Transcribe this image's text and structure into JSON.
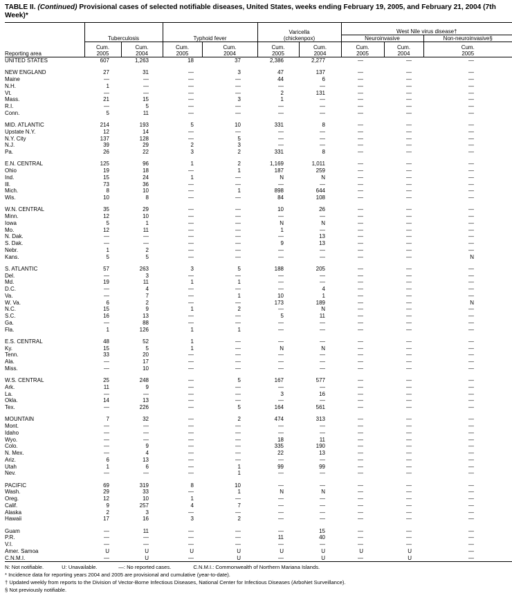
{
  "title": {
    "prefix": "TABLE II. ",
    "continued": "(Continued)",
    "text": " Provisional cases of selected notifiable diseases, United States, weeks ending February 19, 2005, and February 21, 2004 (7th Week)*"
  },
  "header": {
    "reporting_area": "Reporting area",
    "tuberculosis": "Tuberculosis",
    "typhoid": "Typhoid fever",
    "varicella_line1": "Varicella",
    "varicella_line2": "(chickenpox)",
    "west_nile": "West Nile virus disease†",
    "neuroinvasive": "Neuroinvasive",
    "non_neuroinvasive": "Non-neuroinvasive§",
    "cum": "Cum.",
    "years": [
      "2005",
      "2004",
      "2005",
      "2004",
      "2005",
      "2004",
      "2005",
      "2004",
      "2005"
    ]
  },
  "groups": [
    [
      [
        "UNITED STATES",
        "607",
        "1,263",
        "18",
        "37",
        "2,386",
        "2,277",
        "—",
        "—",
        "—"
      ]
    ],
    [
      [
        "NEW ENGLAND",
        "27",
        "31",
        "—",
        "3",
        "47",
        "137",
        "—",
        "—",
        "—"
      ],
      [
        "Maine",
        "—",
        "—",
        "—",
        "—",
        "44",
        "6",
        "—",
        "—",
        "—"
      ],
      [
        "N.H.",
        "1",
        "—",
        "—",
        "—",
        "—",
        "—",
        "—",
        "—",
        "—"
      ],
      [
        "Vt.",
        "—",
        "—",
        "—",
        "—",
        "2",
        "131",
        "—",
        "—",
        "—"
      ],
      [
        "Mass.",
        "21",
        "15",
        "—",
        "3",
        "1",
        "—",
        "—",
        "—",
        "—"
      ],
      [
        "R.I.",
        "—",
        "5",
        "—",
        "—",
        "—",
        "—",
        "—",
        "—",
        "—"
      ],
      [
        "Conn.",
        "5",
        "11",
        "—",
        "—",
        "—",
        "—",
        "—",
        "—",
        "—"
      ]
    ],
    [
      [
        "MID. ATLANTIC",
        "214",
        "193",
        "5",
        "10",
        "331",
        "8",
        "—",
        "—",
        "—"
      ],
      [
        "Upstate N.Y.",
        "12",
        "14",
        "—",
        "—",
        "—",
        "—",
        "—",
        "—",
        "—"
      ],
      [
        "N.Y. City",
        "137",
        "128",
        "—",
        "5",
        "—",
        "—",
        "—",
        "—",
        "—"
      ],
      [
        "N.J.",
        "39",
        "29",
        "2",
        "3",
        "—",
        "—",
        "—",
        "—",
        "—"
      ],
      [
        "Pa.",
        "26",
        "22",
        "3",
        "2",
        "331",
        "8",
        "—",
        "—",
        "—"
      ]
    ],
    [
      [
        "E.N. CENTRAL",
        "125",
        "96",
        "1",
        "2",
        "1,169",
        "1,011",
        "—",
        "—",
        "—"
      ],
      [
        "Ohio",
        "19",
        "18",
        "—",
        "1",
        "187",
        "259",
        "—",
        "—",
        "—"
      ],
      [
        "Ind.",
        "15",
        "24",
        "1",
        "—",
        "N",
        "N",
        "—",
        "—",
        "—"
      ],
      [
        "Ill.",
        "73",
        "36",
        "—",
        "—",
        "—",
        "—",
        "—",
        "—",
        "—"
      ],
      [
        "Mich.",
        "8",
        "10",
        "—",
        "1",
        "898",
        "644",
        "—",
        "—",
        "—"
      ],
      [
        "Wis.",
        "10",
        "8",
        "—",
        "—",
        "84",
        "108",
        "—",
        "—",
        "—"
      ]
    ],
    [
      [
        "W.N. CENTRAL",
        "35",
        "29",
        "—",
        "—",
        "10",
        "26",
        "—",
        "—",
        "—"
      ],
      [
        "Minn.",
        "12",
        "10",
        "—",
        "—",
        "—",
        "—",
        "—",
        "—",
        "—"
      ],
      [
        "Iowa",
        "5",
        "1",
        "—",
        "—",
        "N",
        "N",
        "—",
        "—",
        "—"
      ],
      [
        "Mo.",
        "12",
        "11",
        "—",
        "—",
        "1",
        "—",
        "—",
        "—",
        "—"
      ],
      [
        "N. Dak.",
        "—",
        "—",
        "—",
        "—",
        "—",
        "13",
        "—",
        "—",
        "—"
      ],
      [
        "S. Dak.",
        "—",
        "—",
        "—",
        "—",
        "9",
        "13",
        "—",
        "—",
        "—"
      ],
      [
        "Nebr.",
        "1",
        "2",
        "—",
        "—",
        "—",
        "—",
        "—",
        "—",
        "—"
      ],
      [
        "Kans.",
        "5",
        "5",
        "—",
        "—",
        "—",
        "—",
        "—",
        "—",
        "N"
      ]
    ],
    [
      [
        "S. ATLANTIC",
        "57",
        "263",
        "3",
        "5",
        "188",
        "205",
        "—",
        "—",
        "—"
      ],
      [
        "Del.",
        "—",
        "3",
        "—",
        "—",
        "—",
        "—",
        "—",
        "—",
        "—"
      ],
      [
        "Md.",
        "19",
        "11",
        "1",
        "1",
        "—",
        "—",
        "—",
        "—",
        "—"
      ],
      [
        "D.C.",
        "—",
        "4",
        "—",
        "—",
        "—",
        "4",
        "—",
        "—",
        "—"
      ],
      [
        "Va.",
        "—",
        "7",
        "—",
        "1",
        "10",
        "1",
        "—",
        "—",
        "—"
      ],
      [
        "W. Va.",
        "6",
        "2",
        "—",
        "—",
        "173",
        "189",
        "—",
        "—",
        "N"
      ],
      [
        "N.C.",
        "15",
        "9",
        "1",
        "2",
        "—",
        "N",
        "—",
        "—",
        "—"
      ],
      [
        "S.C.",
        "16",
        "13",
        "—",
        "—",
        "5",
        "11",
        "—",
        "—",
        "—"
      ],
      [
        "Ga.",
        "—",
        "88",
        "—",
        "—",
        "—",
        "—",
        "—",
        "—",
        "—"
      ],
      [
        "Fla.",
        "1",
        "126",
        "1",
        "1",
        "—",
        "—",
        "—",
        "—",
        "—"
      ]
    ],
    [
      [
        "E.S. CENTRAL",
        "48",
        "52",
        "1",
        "—",
        "—",
        "—",
        "—",
        "—",
        "—"
      ],
      [
        "Ky.",
        "15",
        "5",
        "1",
        "—",
        "N",
        "N",
        "—",
        "—",
        "—"
      ],
      [
        "Tenn.",
        "33",
        "20",
        "—",
        "—",
        "—",
        "—",
        "—",
        "—",
        "—"
      ],
      [
        "Ala.",
        "—",
        "17",
        "—",
        "—",
        "—",
        "—",
        "—",
        "—",
        "—"
      ],
      [
        "Miss.",
        "—",
        "10",
        "—",
        "—",
        "—",
        "—",
        "—",
        "—",
        "—"
      ]
    ],
    [
      [
        "W.S. CENTRAL",
        "25",
        "248",
        "—",
        "5",
        "167",
        "577",
        "—",
        "—",
        "—"
      ],
      [
        "Ark.",
        "11",
        "9",
        "—",
        "—",
        "—",
        "—",
        "—",
        "—",
        "—"
      ],
      [
        "La.",
        "—",
        "—",
        "—",
        "—",
        "3",
        "16",
        "—",
        "—",
        "—"
      ],
      [
        "Okla.",
        "14",
        "13",
        "—",
        "—",
        "—",
        "—",
        "—",
        "—",
        "—"
      ],
      [
        "Tex.",
        "—",
        "226",
        "—",
        "5",
        "164",
        "561",
        "—",
        "—",
        "—"
      ]
    ],
    [
      [
        "MOUNTAIN",
        "7",
        "32",
        "—",
        "2",
        "474",
        "313",
        "—",
        "—",
        "—"
      ],
      [
        "Mont.",
        "—",
        "—",
        "—",
        "—",
        "—",
        "—",
        "—",
        "—",
        "—"
      ],
      [
        "Idaho",
        "—",
        "—",
        "—",
        "—",
        "—",
        "—",
        "—",
        "—",
        "—"
      ],
      [
        "Wyo.",
        "—",
        "—",
        "—",
        "—",
        "18",
        "11",
        "—",
        "—",
        "—"
      ],
      [
        "Colo.",
        "—",
        "9",
        "—",
        "—",
        "335",
        "190",
        "—",
        "—",
        "—"
      ],
      [
        "N. Mex.",
        "—",
        "4",
        "—",
        "—",
        "22",
        "13",
        "—",
        "—",
        "—"
      ],
      [
        "Ariz.",
        "6",
        "13",
        "—",
        "—",
        "—",
        "—",
        "—",
        "—",
        "—"
      ],
      [
        "Utah",
        "1",
        "6",
        "—",
        "1",
        "99",
        "99",
        "—",
        "—",
        "—"
      ],
      [
        "Nev.",
        "—",
        "—",
        "—",
        "1",
        "—",
        "—",
        "—",
        "—",
        "—"
      ]
    ],
    [
      [
        "PACIFIC",
        "69",
        "319",
        "8",
        "10",
        "—",
        "—",
        "—",
        "—",
        "—"
      ],
      [
        "Wash.",
        "29",
        "33",
        "—",
        "1",
        "N",
        "N",
        "—",
        "—",
        "—"
      ],
      [
        "Oreg.",
        "12",
        "10",
        "1",
        "—",
        "—",
        "—",
        "—",
        "—",
        "—"
      ],
      [
        "Calif.",
        "9",
        "257",
        "4",
        "7",
        "—",
        "—",
        "—",
        "—",
        "—"
      ],
      [
        "Alaska",
        "2",
        "3",
        "—",
        "—",
        "—",
        "—",
        "—",
        "—",
        "—"
      ],
      [
        "Hawaii",
        "17",
        "16",
        "3",
        "2",
        "—",
        "—",
        "—",
        "—",
        "—"
      ]
    ],
    [
      [
        "Guam",
        "—",
        "11",
        "—",
        "—",
        "—",
        "15",
        "—",
        "—",
        "—"
      ],
      [
        "P.R.",
        "—",
        "—",
        "—",
        "—",
        "11",
        "40",
        "—",
        "—",
        "—"
      ],
      [
        "V.I.",
        "—",
        "—",
        "—",
        "—",
        "—",
        "—",
        "—",
        "—",
        "—"
      ],
      [
        "Amer. Samoa",
        "U",
        "U",
        "U",
        "U",
        "U",
        "U",
        "U",
        "U",
        "—"
      ],
      [
        "C.N.M.I.",
        "—",
        "U",
        "—",
        "U",
        "—",
        "U",
        "—",
        "U",
        "—"
      ]
    ]
  ],
  "footnotes": {
    "legend_n": "N: Not notifiable.",
    "legend_u": "U: Unavailable.",
    "legend_dash": "—: No reported cases.",
    "legend_cnmi": "C.N.M.I.: Commonwealth of Northern Mariana Islands.",
    "star": "* Incidence data for reporting years 2004 and 2005 are provisional and cumulative (year-to-date).",
    "dagger": "† Updated weekly from reports to the Division of Vector-Borne Infectious Diseases, National Center for Infectious Diseases (ArboNet Surveillance).",
    "section": "§ Not previously notifiable."
  }
}
